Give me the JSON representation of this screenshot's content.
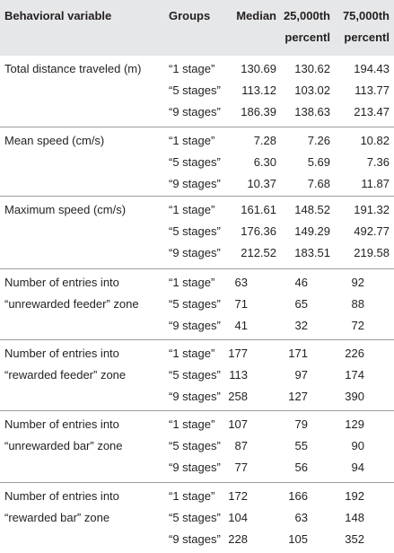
{
  "table": {
    "headers": {
      "variable": "Behavioral variable",
      "groups": "Groups",
      "median": "Median",
      "p25_line1": "25,000th",
      "p25_line2": "percentl",
      "p75_line1": "75,000th",
      "p75_line2": "percentl"
    },
    "rows": [
      {
        "variable": [
          "Total distance traveled (m)"
        ],
        "entries": [
          {
            "group": "“1 stage”",
            "median": "130.69",
            "p25": "130.62",
            "p75": "194.43"
          },
          {
            "group": "“5 stages”",
            "median": "113.12",
            "p25": "103.02",
            "p75": "113.77"
          },
          {
            "group": "“9 stages”",
            "median": "186.39",
            "p25": "138.63",
            "p75": "213.47"
          }
        ]
      },
      {
        "variable": [
          "Mean speed (cm/s)"
        ],
        "entries": [
          {
            "group": "“1 stage”",
            "median": "7.28",
            "p25": "7.26",
            "p75": "10.82"
          },
          {
            "group": "“5 stages”",
            "median": "6.30",
            "p25": "5.69",
            "p75": "7.36"
          },
          {
            "group": "“9 stages”",
            "median": "10.37",
            "p25": "7.68",
            "p75": "11.87"
          }
        ]
      },
      {
        "variable": [
          "Maximum speed (cm/s)"
        ],
        "entries": [
          {
            "group": "“1 stage”",
            "median": "161.61",
            "p25": "148.52",
            "p75": "191.32"
          },
          {
            "group": "“5 stages”",
            "median": "176.36",
            "p25": "149.29",
            "p75": "492.77"
          },
          {
            "group": "“9 stages”",
            "median": "212.52",
            "p25": "183.51",
            "p75": "219.58"
          }
        ]
      },
      {
        "variable": [
          "Number of entries into",
          "“unrewarded feeder” zone"
        ],
        "entries": [
          {
            "group": "“1 stage”",
            "median": "63",
            "p25": "46",
            "p75": "92"
          },
          {
            "group": "“5 stages”",
            "median": "71",
            "p25": "65",
            "p75": "88"
          },
          {
            "group": "“9 stages”",
            "median": "41",
            "p25": "32",
            "p75": "72"
          }
        ]
      },
      {
        "variable": [
          "Number of entries into",
          "“rewarded feeder” zone"
        ],
        "entries": [
          {
            "group": "“1 stage”",
            "median": "177",
            "p25": "171",
            "p75": "226"
          },
          {
            "group": "“5 stages”",
            "median": "113",
            "p25": "97",
            "p75": "174"
          },
          {
            "group": "“9 stages”",
            "median": "258",
            "p25": "127",
            "p75": "390"
          }
        ]
      },
      {
        "variable": [
          "Number of entries into",
          "“unrewarded bar” zone"
        ],
        "entries": [
          {
            "group": "“1 stage”",
            "median": "107",
            "p25": "79",
            "p75": "129"
          },
          {
            "group": "“5 stages”",
            "median": "87",
            "p25": "55",
            "p75": "90"
          },
          {
            "group": "“9 stages”",
            "median": "77",
            "p25": "56",
            "p75": "94"
          }
        ]
      },
      {
        "variable": [
          "Number of entries into",
          "“rewarded bar” zone"
        ],
        "entries": [
          {
            "group": "“1 stage”",
            "median": "172",
            "p25": "166",
            "p75": "192"
          },
          {
            "group": "“5 stages”",
            "median": "104",
            "p25": "63",
            "p75": "148"
          },
          {
            "group": "“9 stages”",
            "median": "228",
            "p25": "105",
            "p75": "352"
          }
        ]
      }
    ]
  }
}
